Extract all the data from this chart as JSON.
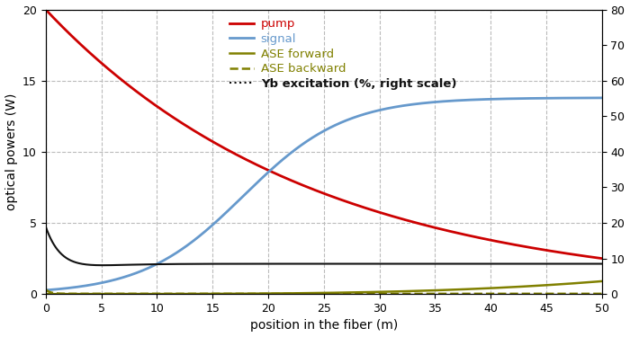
{
  "xlabel": "position in the fiber (m)",
  "ylabel": "optical powers (W)",
  "xlim": [
    0,
    50
  ],
  "ylim_left": [
    0,
    20
  ],
  "ylim_right": [
    0,
    80
  ],
  "x_ticks": [
    0,
    5,
    10,
    15,
    20,
    25,
    30,
    35,
    40,
    45,
    50
  ],
  "y_ticks_left": [
    0,
    5,
    10,
    15,
    20
  ],
  "y_ticks_right": [
    0,
    10,
    20,
    30,
    40,
    50,
    60,
    70,
    80
  ],
  "pump_color": "#cc0000",
  "signal_color": "#6699cc",
  "ase_color": "#808000",
  "yb_color": "#111111",
  "bg_color": "#ffffff",
  "grid_color": "#bbbbbb",
  "legend_labels": [
    "pump",
    "signal",
    "ASE forward",
    "ASE backward",
    "Yb excitation (%, right scale)"
  ],
  "legend_colors": [
    "#cc0000",
    "#6699cc",
    "#808000",
    "#808000",
    "#111111"
  ],
  "pump_start": 20.0,
  "pump_end": 2.5,
  "signal_start": 0.13,
  "signal_end": 13.8,
  "signal_k": 50,
  "signal_r": 0.22,
  "ase_fwd_end": 0.9,
  "ase_fwd_exp": 3.5,
  "ase_bwd_val": 0.02,
  "yb_peak_pct": 19.0,
  "yb_peak_decay": 0.65,
  "yb_flat_pct": 8.5,
  "yb_flat_rise": 0.4,
  "scale_factor": 0.25
}
